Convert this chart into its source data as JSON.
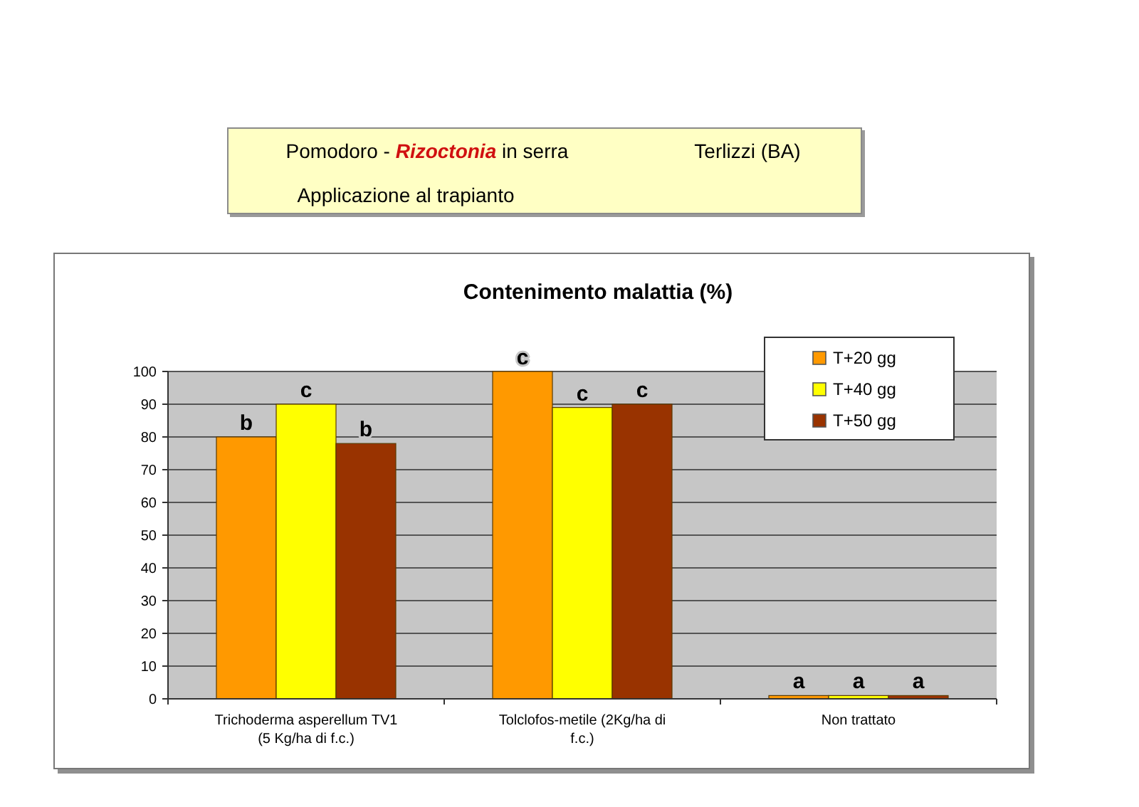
{
  "chart_data": {
    "type": "bar",
    "title": "Contenimento malattia (%)",
    "annotations": [
      "Pomodoro - Rizoctonia in serra",
      "Terlizzi (BA)",
      "Applicazione al trapianto"
    ],
    "categories": [
      "Trichoderma asperellum TV1 (5 Kg/ha di f.c.)",
      "Tolclofos-metile (2Kg/ha di f.c.)",
      "Non trattato"
    ],
    "series": [
      {
        "name": "T+20 gg",
        "color": "#ff9900",
        "values": [
          80,
          100,
          1
        ],
        "value_labels": [
          "b",
          "c",
          "a"
        ]
      },
      {
        "name": "T+40 gg",
        "color": "#ffff00",
        "values": [
          90,
          89,
          1
        ],
        "value_labels": [
          "c",
          "c",
          "a"
        ]
      },
      {
        "name": "T+50 gg",
        "color": "#993300",
        "values": [
          78,
          90,
          1
        ],
        "value_labels": [
          "b",
          "c",
          "a"
        ]
      }
    ],
    "ylim": [
      0,
      100
    ],
    "yticks": [
      0,
      10,
      20,
      30,
      40,
      50,
      60,
      70,
      80,
      90,
      100
    ],
    "grid": "y",
    "legend": "top right"
  }
}
